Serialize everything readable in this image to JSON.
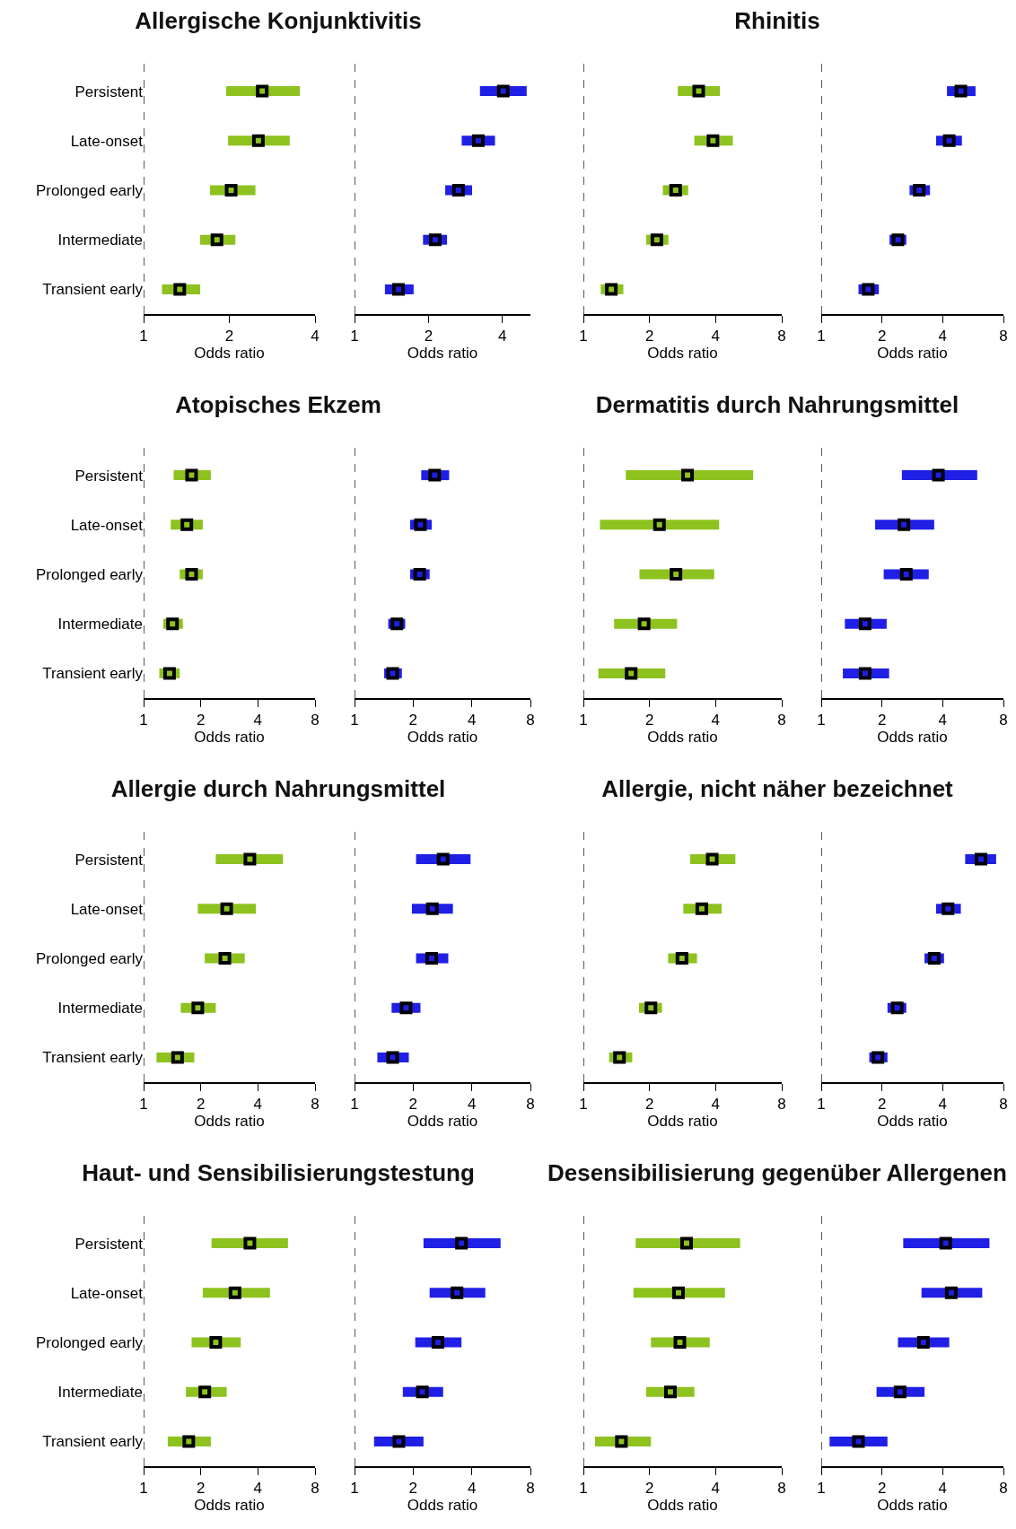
{
  "chart_data": [
    {
      "type": "scatter",
      "title": "Allergische Konjunktivitis",
      "xlabel": "Odds ratio",
      "orientation": "horizontal",
      "categories": [
        "Persistent",
        "Late-onset",
        "Prolonged early",
        "Intermediate",
        "Transient early"
      ],
      "color": "#8dc21f",
      "values": [
        2.61,
        2.53,
        2.03,
        1.81,
        1.34
      ],
      "errors": [
        [
          1.95,
          3.54
        ],
        [
          1.98,
          3.26
        ],
        [
          1.71,
          2.47
        ],
        [
          1.58,
          2.1
        ],
        [
          1.16,
          1.58
        ]
      ],
      "log": "x",
      "xlim": [
        1,
        4
      ],
      "xticks": [
        1,
        2,
        4
      ],
      "marker": "square",
      "ref_lines": [
        {
          "axis": "x",
          "value": 1,
          "line_style": "dashed"
        }
      ]
    },
    {
      "type": "scatter",
      "xlabel": "Odds ratio",
      "orientation": "horizontal",
      "categories": [
        null,
        null,
        null,
        null,
        null
      ],
      "color": "#1f1fe6",
      "values": [
        4.03,
        3.19,
        2.65,
        2.13,
        1.51
      ],
      "errors": [
        [
          3.24,
          5.02
        ],
        [
          2.73,
          3.73
        ],
        [
          2.34,
          3.01
        ],
        [
          1.9,
          2.38
        ],
        [
          1.33,
          1.74
        ]
      ],
      "log": "x",
      "xlim": [
        1,
        5.2
      ],
      "xticks": [
        1,
        2,
        4
      ],
      "marker": "square",
      "ref_lines": [
        {
          "axis": "x",
          "value": 1,
          "line_style": "dashed"
        }
      ],
      "tick_labels": "x"
    },
    {
      "type": "scatter",
      "title": "Rhinitis",
      "xlabel": "Odds ratio",
      "orientation": "horizontal",
      "categories": [
        null,
        null,
        null,
        null,
        null
      ],
      "color": "#8dc21f",
      "values": [
        3.35,
        3.89,
        2.63,
        2.16,
        1.34
      ],
      "errors": [
        [
          2.69,
          4.18
        ],
        [
          3.2,
          4.79
        ],
        [
          2.3,
          3.0
        ],
        [
          1.93,
          2.44
        ],
        [
          1.2,
          1.52
        ]
      ],
      "log": "x",
      "xlim": [
        1,
        8
      ],
      "xticks": [
        1,
        2,
        4,
        8
      ],
      "marker": "square",
      "ref_lines": [
        {
          "axis": "x",
          "value": 1,
          "line_style": "dashed"
        }
      ],
      "tick_labels": "x"
    },
    {
      "type": "scatter",
      "xlabel": "Odds ratio",
      "orientation": "horizontal",
      "categories": [
        null,
        null,
        null,
        null,
        null
      ],
      "color": "#1f1fe6",
      "values": [
        4.92,
        4.31,
        3.06,
        2.4,
        1.71
      ],
      "errors": [
        [
          4.2,
          5.82
        ],
        [
          3.71,
          4.98
        ],
        [
          2.74,
          3.46
        ],
        [
          2.18,
          2.64
        ],
        [
          1.53,
          1.93
        ]
      ],
      "log": "x",
      "xlim": [
        1,
        8
      ],
      "xticks": [
        1,
        2,
        4,
        8
      ],
      "marker": "square",
      "ref_lines": [
        {
          "axis": "x",
          "value": 1,
          "line_style": "dashed"
        }
      ],
      "tick_labels": "x"
    },
    {
      "type": "scatter",
      "title": "Atopisches Ekzem",
      "xlabel": "Odds ratio",
      "orientation": "horizontal",
      "categories": [
        "Persistent",
        "Late-onset",
        "Prolonged early",
        "Intermediate",
        "Transient early"
      ],
      "color": "#8dc21f",
      "values": [
        1.79,
        1.69,
        1.79,
        1.42,
        1.37
      ],
      "errors": [
        [
          1.44,
          2.26
        ],
        [
          1.39,
          2.05
        ],
        [
          1.55,
          2.05
        ],
        [
          1.27,
          1.61
        ],
        [
          1.21,
          1.55
        ]
      ],
      "log": "x",
      "xlim": [
        1,
        8
      ],
      "xticks": [
        1,
        2,
        4,
        8
      ],
      "marker": "square",
      "ref_lines": [
        {
          "axis": "x",
          "value": 1,
          "line_style": "dashed"
        }
      ]
    },
    {
      "type": "scatter",
      "xlabel": "Odds ratio",
      "orientation": "horizontal",
      "categories": [
        null,
        null,
        null,
        null,
        null
      ],
      "color": "#1f1fe6",
      "values": [
        2.58,
        2.18,
        2.16,
        1.65,
        1.57
      ],
      "errors": [
        [
          2.2,
          3.06
        ],
        [
          1.93,
          2.49
        ],
        [
          1.93,
          2.43
        ],
        [
          1.49,
          1.82
        ],
        [
          1.42,
          1.75
        ]
      ],
      "log": "x",
      "xlim": [
        1,
        8
      ],
      "xticks": [
        1,
        2,
        4,
        8
      ],
      "marker": "square",
      "ref_lines": [
        {
          "axis": "x",
          "value": 1,
          "line_style": "dashed"
        }
      ],
      "tick_labels": "x"
    },
    {
      "type": "scatter",
      "title": "Dermatitis durch Nahrungsmittel",
      "xlabel": "Odds ratio",
      "orientation": "horizontal",
      "categories": [
        null,
        null,
        null,
        null,
        null
      ],
      "color": "#8dc21f",
      "values": [
        2.98,
        2.22,
        2.64,
        1.89,
        1.65
      ],
      "errors": [
        [
          1.56,
          5.93
        ],
        [
          1.19,
          4.15
        ],
        [
          1.8,
          3.94
        ],
        [
          1.38,
          2.67
        ],
        [
          1.17,
          2.36
        ]
      ],
      "log": "x",
      "xlim": [
        1,
        8
      ],
      "xticks": [
        1,
        2,
        4,
        8
      ],
      "marker": "square",
      "ref_lines": [
        {
          "axis": "x",
          "value": 1,
          "line_style": "dashed"
        }
      ],
      "tick_labels": "x"
    },
    {
      "type": "scatter",
      "xlabel": "Odds ratio",
      "orientation": "horizontal",
      "categories": [
        null,
        null,
        null,
        null,
        null
      ],
      "color": "#1f1fe6",
      "values": [
        3.81,
        2.57,
        2.64,
        1.65,
        1.65
      ],
      "errors": [
        [
          2.51,
          5.93
        ],
        [
          1.85,
          3.63
        ],
        [
          2.04,
          3.41
        ],
        [
          1.31,
          2.11
        ],
        [
          1.28,
          2.17
        ]
      ],
      "log": "x",
      "xlim": [
        1,
        8
      ],
      "xticks": [
        1,
        2,
        4,
        8
      ],
      "marker": "square",
      "ref_lines": [
        {
          "axis": "x",
          "value": 1,
          "line_style": "dashed"
        }
      ],
      "tick_labels": "x"
    },
    {
      "type": "scatter",
      "title": "Allergie durch Nahrungsmittel",
      "xlabel": "Odds ratio",
      "orientation": "horizontal",
      "categories": [
        "Persistent",
        "Late-onset",
        "Prolonged early",
        "Intermediate",
        "Transient early"
      ],
      "color": "#8dc21f",
      "values": [
        3.63,
        2.74,
        2.68,
        1.93,
        1.51
      ],
      "errors": [
        [
          2.4,
          5.42
        ],
        [
          1.93,
          3.9
        ],
        [
          2.1,
          3.41
        ],
        [
          1.57,
          2.4
        ],
        [
          1.17,
          1.85
        ]
      ],
      "log": "x",
      "xlim": [
        1,
        8
      ],
      "xticks": [
        1,
        2,
        4,
        8
      ],
      "marker": "square",
      "ref_lines": [
        {
          "axis": "x",
          "value": 1,
          "line_style": "dashed"
        }
      ]
    },
    {
      "type": "scatter",
      "xlabel": "Odds ratio",
      "orientation": "horizontal",
      "categories": [
        null,
        null,
        null,
        null,
        null
      ],
      "color": "#1f1fe6",
      "values": [
        2.85,
        2.51,
        2.49,
        1.84,
        1.57
      ],
      "errors": [
        [
          2.07,
          3.94
        ],
        [
          1.97,
          3.2
        ],
        [
          2.07,
          3.03
        ],
        [
          1.55,
          2.18
        ],
        [
          1.31,
          1.9
        ]
      ],
      "log": "x",
      "xlim": [
        1,
        8
      ],
      "xticks": [
        1,
        2,
        4,
        8
      ],
      "marker": "square",
      "ref_lines": [
        {
          "axis": "x",
          "value": 1,
          "line_style": "dashed"
        }
      ],
      "tick_labels": "x"
    },
    {
      "type": "scatter",
      "title": "Allergie, nicht näher bezeichnet",
      "xlabel": "Odds ratio",
      "orientation": "horizontal",
      "categories": [
        null,
        null,
        null,
        null,
        null
      ],
      "color": "#8dc21f",
      "values": [
        3.86,
        3.46,
        2.81,
        2.03,
        1.46
      ],
      "errors": [
        [
          3.06,
          4.92
        ],
        [
          2.85,
          4.26
        ],
        [
          2.43,
          3.29
        ],
        [
          1.79,
          2.28
        ],
        [
          1.31,
          1.67
        ]
      ],
      "log": "x",
      "xlim": [
        1,
        8
      ],
      "xticks": [
        1,
        2,
        4,
        8
      ],
      "marker": "square",
      "ref_lines": [
        {
          "axis": "x",
          "value": 1,
          "line_style": "dashed"
        }
      ],
      "tick_labels": "x"
    },
    {
      "type": "scatter",
      "xlabel": "Odds ratio",
      "orientation": "horizontal",
      "categories": [
        null,
        null,
        null,
        null,
        null
      ],
      "color": "#1f1fe6",
      "values": [
        6.19,
        4.25,
        3.63,
        2.38,
        1.91
      ],
      "errors": [
        [
          5.17,
          7.36
        ],
        [
          3.71,
          4.92
        ],
        [
          3.25,
          4.06
        ],
        [
          2.13,
          2.64
        ],
        [
          1.73,
          2.13
        ]
      ],
      "log": "x",
      "xlim": [
        1,
        8
      ],
      "xticks": [
        1,
        2,
        4,
        8
      ],
      "marker": "square",
      "ref_lines": [
        {
          "axis": "x",
          "value": 1,
          "line_style": "dashed"
        }
      ],
      "tick_labels": "x"
    },
    {
      "type": "scatter",
      "title": "Haut- und Sensibilisierungstestung",
      "xlabel": "Odds ratio",
      "orientation": "horizontal",
      "categories": [
        "Persistent",
        "Late-onset",
        "Prolonged early",
        "Intermediate",
        "Transient early"
      ],
      "color": "#8dc21f",
      "values": [
        3.63,
        3.03,
        2.4,
        2.1,
        1.73
      ],
      "errors": [
        [
          2.28,
          5.76
        ],
        [
          2.05,
          4.63
        ],
        [
          1.79,
          3.25
        ],
        [
          1.67,
          2.74
        ],
        [
          1.34,
          2.26
        ]
      ],
      "log": "x",
      "xlim": [
        1,
        8
      ],
      "xticks": [
        1,
        2,
        4,
        8
      ],
      "marker": "square",
      "ref_lines": [
        {
          "axis": "x",
          "value": 1,
          "line_style": "dashed"
        }
      ]
    },
    {
      "type": "scatter",
      "xlabel": "Odds ratio",
      "orientation": "horizontal",
      "categories": [
        null,
        null,
        null,
        null,
        null
      ],
      "color": "#1f1fe6",
      "values": [
        3.54,
        3.36,
        2.68,
        2.23,
        1.69
      ],
      "errors": [
        [
          2.26,
          5.62
        ],
        [
          2.43,
          4.69
        ],
        [
          2.05,
          3.54
        ],
        [
          1.77,
          2.85
        ],
        [
          1.26,
          2.26
        ]
      ],
      "log": "x",
      "xlim": [
        1,
        8
      ],
      "xticks": [
        1,
        2,
        4,
        8
      ],
      "marker": "square",
      "ref_lines": [
        {
          "axis": "x",
          "value": 1,
          "line_style": "dashed"
        }
      ],
      "tick_labels": "x"
    },
    {
      "type": "scatter",
      "title": "Desensibilisierung gegenüber Allergenen",
      "xlabel": "Odds ratio",
      "orientation": "horizontal",
      "categories": [
        null,
        null,
        null,
        null,
        null
      ],
      "color": "#8dc21f",
      "values": [
        2.95,
        2.71,
        2.75,
        2.49,
        1.49
      ],
      "errors": [
        [
          1.73,
          5.17
        ],
        [
          1.69,
          4.41
        ],
        [
          2.03,
          3.76
        ],
        [
          1.93,
          3.2
        ],
        [
          1.13,
          2.03
        ]
      ],
      "log": "x",
      "xlim": [
        1,
        8
      ],
      "xticks": [
        1,
        2,
        4,
        8
      ],
      "marker": "square",
      "ref_lines": [
        {
          "axis": "x",
          "value": 1,
          "line_style": "dashed"
        }
      ],
      "tick_labels": "x"
    },
    {
      "type": "scatter",
      "xlabel": "Odds ratio",
      "orientation": "horizontal",
      "categories": [
        null,
        null,
        null,
        null,
        null
      ],
      "color": "#1f1fe6",
      "values": [
        4.14,
        4.41,
        3.21,
        2.46,
        1.53
      ],
      "errors": [
        [
          2.55,
          6.82
        ],
        [
          3.14,
          6.28
        ],
        [
          2.4,
          4.31
        ],
        [
          1.88,
          3.25
        ],
        [
          1.1,
          2.13
        ]
      ],
      "log": "x",
      "xlim": [
        1,
        8
      ],
      "xticks": [
        1,
        2,
        4,
        8
      ],
      "marker": "square",
      "ref_lines": [
        {
          "axis": "x",
          "value": 1,
          "line_style": "dashed"
        }
      ],
      "tick_labels": "x"
    }
  ]
}
